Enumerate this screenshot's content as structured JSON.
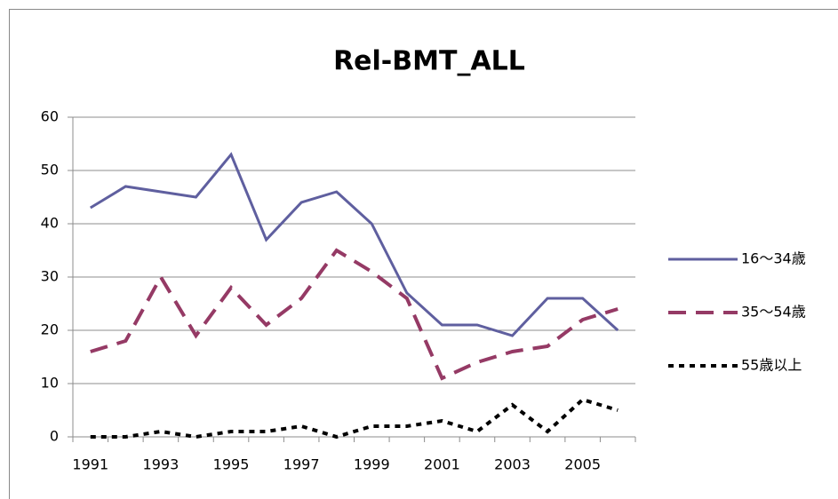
{
  "chart_data": {
    "type": "line",
    "title": "Rel-BMT_ALL",
    "categories": [
      "1991",
      null,
      "1993",
      null,
      "1995",
      null,
      "1997",
      null,
      "1999",
      null,
      "2001",
      null,
      "2003",
      null,
      "2005",
      null
    ],
    "series": [
      {
        "name": "16〜34歳",
        "color": "#5f5f9f",
        "style": "solid",
        "values": [
          43,
          47,
          46,
          45,
          53,
          37,
          44,
          46,
          40,
          27,
          21,
          21,
          19,
          26,
          26,
          20
        ]
      },
      {
        "name": "35〜54歳",
        "color": "#953a65",
        "style": "dashed",
        "values": [
          16,
          18,
          30,
          19,
          28,
          21,
          26,
          35,
          31,
          26,
          11,
          14,
          16,
          17,
          22,
          24
        ]
      },
      {
        "name": "55歳以上",
        "color": "#000000",
        "style": "dotted",
        "values": [
          0,
          0,
          1,
          0,
          1,
          1,
          2,
          0,
          2,
          2,
          3,
          1,
          6,
          1,
          7,
          5
        ]
      }
    ],
    "ylim": [
      0,
      60
    ],
    "yticks": [
      0,
      10,
      20,
      30,
      40,
      50,
      60
    ],
    "grid": true,
    "legend": "right"
  }
}
